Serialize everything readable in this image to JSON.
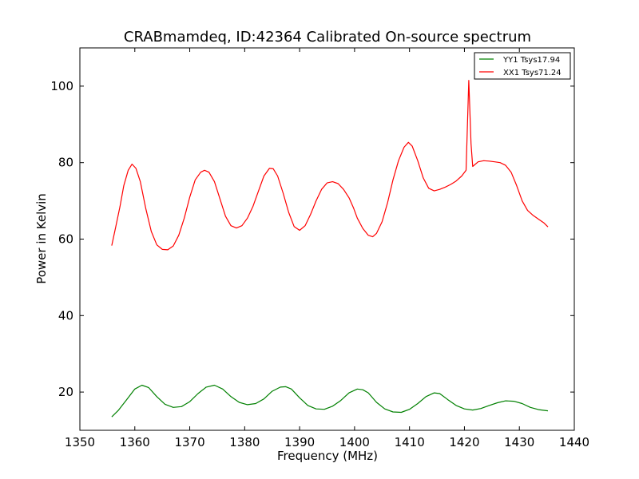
{
  "chart_data": {
    "type": "line",
    "title": "CRABmamdeq, ID:42364 Calibrated On-source spectrum",
    "xlabel": "Frequency (MHz)",
    "ylabel": "Power in Kelvin",
    "xlim": [
      1350,
      1440
    ],
    "ylim": [
      10,
      110
    ],
    "xticks": [
      1350,
      1360,
      1370,
      1380,
      1390,
      1400,
      1410,
      1420,
      1430,
      1440
    ],
    "yticks": [
      20,
      40,
      60,
      80,
      100
    ],
    "legend_position": "top-right",
    "grid": false,
    "series": [
      {
        "name": "YY1 Tsys17.94",
        "color": "#008000",
        "points": [
          [
            1355.8,
            13.5
          ],
          [
            1357.0,
            15.2
          ],
          [
            1358.5,
            18.0
          ],
          [
            1360.0,
            20.8
          ],
          [
            1361.3,
            21.8
          ],
          [
            1362.5,
            21.2
          ],
          [
            1364.0,
            18.8
          ],
          [
            1365.5,
            16.8
          ],
          [
            1367.0,
            16.0
          ],
          [
            1368.5,
            16.2
          ],
          [
            1370.0,
            17.5
          ],
          [
            1371.5,
            19.6
          ],
          [
            1373.0,
            21.3
          ],
          [
            1374.5,
            21.8
          ],
          [
            1376.0,
            20.8
          ],
          [
            1377.5,
            18.8
          ],
          [
            1379.0,
            17.3
          ],
          [
            1380.5,
            16.7
          ],
          [
            1382.0,
            17.0
          ],
          [
            1383.5,
            18.2
          ],
          [
            1385.0,
            20.2
          ],
          [
            1386.5,
            21.3
          ],
          [
            1387.5,
            21.4
          ],
          [
            1388.5,
            20.8
          ],
          [
            1390.0,
            18.5
          ],
          [
            1391.5,
            16.5
          ],
          [
            1393.0,
            15.6
          ],
          [
            1394.5,
            15.5
          ],
          [
            1396.0,
            16.3
          ],
          [
            1397.5,
            17.8
          ],
          [
            1399.0,
            19.8
          ],
          [
            1400.5,
            20.8
          ],
          [
            1401.5,
            20.6
          ],
          [
            1402.5,
            19.8
          ],
          [
            1404.0,
            17.3
          ],
          [
            1405.5,
            15.6
          ],
          [
            1407.0,
            14.8
          ],
          [
            1408.5,
            14.7
          ],
          [
            1410.0,
            15.5
          ],
          [
            1411.5,
            17.0
          ],
          [
            1413.0,
            18.8
          ],
          [
            1414.5,
            19.8
          ],
          [
            1415.5,
            19.6
          ],
          [
            1417.0,
            18.0
          ],
          [
            1418.5,
            16.5
          ],
          [
            1420.0,
            15.6
          ],
          [
            1421.5,
            15.3
          ],
          [
            1423.0,
            15.7
          ],
          [
            1424.5,
            16.5
          ],
          [
            1426.0,
            17.2
          ],
          [
            1427.5,
            17.7
          ],
          [
            1429.0,
            17.6
          ],
          [
            1430.5,
            17.0
          ],
          [
            1432.0,
            16.0
          ],
          [
            1433.5,
            15.4
          ],
          [
            1435.2,
            15.1
          ]
        ]
      },
      {
        "name": "XX1 Tsys71.24",
        "color": "#ff0000",
        "points": [
          [
            1355.8,
            58.3
          ],
          [
            1356.5,
            63.0
          ],
          [
            1357.3,
            68.5
          ],
          [
            1358.0,
            74.0
          ],
          [
            1358.8,
            78.0
          ],
          [
            1359.5,
            79.6
          ],
          [
            1360.2,
            78.5
          ],
          [
            1361.0,
            75.0
          ],
          [
            1362.0,
            68.0
          ],
          [
            1363.0,
            62.0
          ],
          [
            1364.0,
            58.5
          ],
          [
            1365.0,
            57.3
          ],
          [
            1366.0,
            57.2
          ],
          [
            1367.0,
            58.2
          ],
          [
            1368.0,
            61.0
          ],
          [
            1369.0,
            65.5
          ],
          [
            1370.0,
            71.0
          ],
          [
            1371.0,
            75.5
          ],
          [
            1372.0,
            77.5
          ],
          [
            1372.7,
            78.0
          ],
          [
            1373.5,
            77.5
          ],
          [
            1374.5,
            75.0
          ],
          [
            1375.5,
            70.5
          ],
          [
            1376.5,
            66.0
          ],
          [
            1377.5,
            63.5
          ],
          [
            1378.5,
            62.9
          ],
          [
            1379.5,
            63.5
          ],
          [
            1380.5,
            65.5
          ],
          [
            1381.5,
            68.5
          ],
          [
            1382.5,
            72.5
          ],
          [
            1383.5,
            76.5
          ],
          [
            1384.5,
            78.5
          ],
          [
            1385.2,
            78.4
          ],
          [
            1386.0,
            76.5
          ],
          [
            1387.0,
            72.0
          ],
          [
            1388.0,
            67.0
          ],
          [
            1389.0,
            63.3
          ],
          [
            1390.0,
            62.3
          ],
          [
            1391.0,
            63.5
          ],
          [
            1392.0,
            66.5
          ],
          [
            1393.0,
            70.0
          ],
          [
            1394.0,
            73.0
          ],
          [
            1395.0,
            74.7
          ],
          [
            1396.0,
            75.0
          ],
          [
            1397.0,
            74.5
          ],
          [
            1398.0,
            73.0
          ],
          [
            1399.0,
            70.8
          ],
          [
            1399.8,
            68.2
          ],
          [
            1400.5,
            65.5
          ],
          [
            1401.5,
            62.8
          ],
          [
            1402.5,
            61.0
          ],
          [
            1403.3,
            60.6
          ],
          [
            1404.0,
            61.5
          ],
          [
            1405.0,
            64.5
          ],
          [
            1406.0,
            69.5
          ],
          [
            1407.0,
            75.5
          ],
          [
            1408.0,
            80.5
          ],
          [
            1409.0,
            84.0
          ],
          [
            1409.8,
            85.3
          ],
          [
            1410.5,
            84.3
          ],
          [
            1411.5,
            80.5
          ],
          [
            1412.5,
            76.0
          ],
          [
            1413.5,
            73.3
          ],
          [
            1414.5,
            72.6
          ],
          [
            1415.5,
            73.0
          ],
          [
            1416.5,
            73.6
          ],
          [
            1417.5,
            74.3
          ],
          [
            1418.5,
            75.2
          ],
          [
            1419.5,
            76.5
          ],
          [
            1420.3,
            78.0
          ],
          [
            1420.8,
            101.5
          ],
          [
            1421.2,
            85.0
          ],
          [
            1421.5,
            79.0
          ],
          [
            1422.5,
            80.2
          ],
          [
            1423.5,
            80.5
          ],
          [
            1424.5,
            80.4
          ],
          [
            1425.5,
            80.2
          ],
          [
            1426.5,
            80.0
          ],
          [
            1427.5,
            79.3
          ],
          [
            1428.5,
            77.5
          ],
          [
            1429.5,
            74.0
          ],
          [
            1430.5,
            70.0
          ],
          [
            1431.5,
            67.5
          ],
          [
            1432.5,
            66.2
          ],
          [
            1433.5,
            65.2
          ],
          [
            1434.5,
            64.2
          ],
          [
            1435.2,
            63.2
          ]
        ]
      }
    ]
  }
}
